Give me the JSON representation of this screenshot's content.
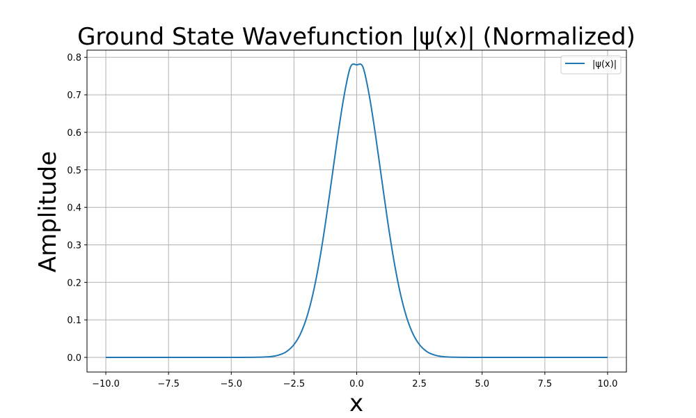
{
  "chart_data": {
    "type": "line",
    "title": "Ground State Wavefunction |ψ(x)| (Normalized)",
    "xlabel": "x",
    "ylabel": "Amplitude",
    "xlim": [
      -10.75,
      10.75
    ],
    "ylim": [
      -0.039,
      0.819
    ],
    "xticks": [
      -10.0,
      -7.5,
      -5.0,
      -2.5,
      0.0,
      2.5,
      5.0,
      7.5,
      10.0
    ],
    "xtick_labels": [
      "−10.0",
      "−7.5",
      "−5.0",
      "−2.5",
      "0.0",
      "2.5",
      "5.0",
      "7.5",
      "10.0"
    ],
    "yticks": [
      0.0,
      0.1,
      0.2,
      0.3,
      0.4,
      0.5,
      0.6,
      0.7,
      0.8
    ],
    "ytick_labels": [
      "0.0",
      "0.1",
      "0.2",
      "0.3",
      "0.4",
      "0.5",
      "0.6",
      "0.7",
      "0.8"
    ],
    "grid": true,
    "legend_position": "top-right",
    "series": [
      {
        "name": "|ψ(x)|",
        "color": "#1f77b4",
        "x": [
          -10.0,
          -5.0,
          -3.5,
          -3.0,
          -2.75,
          -2.5,
          -2.25,
          -2.0,
          -1.75,
          -1.5,
          -1.25,
          -1.0,
          -0.75,
          -0.5,
          -0.25,
          0.0,
          0.25,
          0.5,
          0.75,
          1.0,
          1.25,
          1.5,
          1.75,
          2.0,
          2.25,
          2.5,
          2.75,
          3.0,
          3.5,
          5.0,
          10.0
        ],
        "y": [
          0.0,
          0.0,
          0.0017,
          0.0087,
          0.0178,
          0.0342,
          0.0617,
          0.1048,
          0.1675,
          0.2517,
          0.3556,
          0.4733,
          0.5927,
          0.6987,
          0.7738,
          0.78,
          0.7738,
          0.6987,
          0.5927,
          0.4733,
          0.3556,
          0.2517,
          0.1675,
          0.1048,
          0.0617,
          0.0342,
          0.0178,
          0.0087,
          0.0017,
          0.0,
          0.0
        ]
      }
    ]
  }
}
